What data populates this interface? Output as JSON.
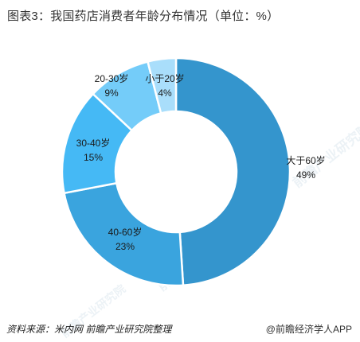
{
  "title": "图表3：我国药店消费者年龄分布情况（单位：%）",
  "footer": {
    "source": "资料来源：米内网 前瞻产业研究院整理",
    "brand": "@前瞻经济学人APP"
  },
  "watermark": "前瞻产业研究院",
  "colors": {
    "background": "#ffffff",
    "separator": "#ffffff"
  },
  "chart_data": {
    "type": "pie",
    "donut": true,
    "title": "图表3：我国药店消费者年龄分布情况（单位：%）",
    "unit": "%",
    "slices": [
      {
        "label": "大于60岁",
        "value": 49,
        "display": "49%",
        "color": "#3495cd"
      },
      {
        "label": "40-60岁",
        "value": 23,
        "display": "23%",
        "color": "#3aa4de"
      },
      {
        "label": "30-40岁",
        "value": 15,
        "display": "15%",
        "color": "#45b9f5"
      },
      {
        "label": "20-30岁",
        "value": 9,
        "display": "9%",
        "color": "#74ccf9"
      },
      {
        "label": "小于20岁",
        "value": 4,
        "display": "4%",
        "color": "#a9defb"
      }
    ]
  }
}
